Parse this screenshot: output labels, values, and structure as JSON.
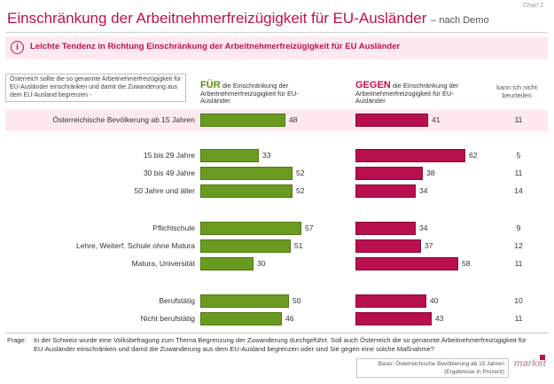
{
  "chart_tag": "Chart 2",
  "title": "Einschränkung der Arbeitnehmerfreizügigkeit für EU-Ausländer",
  "title_suffix": "– nach Demo",
  "headline": "Leichte Tendenz in Richtung Einschränkung der Arbeitnehmerfreizügigkeit für EU Ausländer",
  "question_box": "Österreich sollte die so genannte Arbeitnehmerfreizügigkeit für EU-Ausländer einschränken und damit die Zuwanderung aus dem EU-Ausland begrenzen -",
  "for_header": {
    "bold": "FÜR",
    "rest": "die Einschränkung der Arbeitnehmerfreizügigkeit für EU-Ausländer"
  },
  "against_header": {
    "bold": "GEGEN",
    "rest": "die Einschränkung der Arbeitnehmerfreizügigkeit für EU-Ausländer"
  },
  "nb_header": "kann ich nicht beurteilen",
  "frage_label": "Frage:",
  "frage_text": "In der Schweiz wurde eine Volksbefragung zum Thema Begrenzung der Zuwanderung durchgeführt. Soll auch Österreich die so genannte Arbeitnehmerfreizügigkeit für EU-Ausländer einschränken und damit die Zuwanderung aus dem EU-Ausland begrenzen oder sind Sie gegen eine solche Maßnahme?",
  "basis": "Basis: Österreichische Bevölkerung ab 15 Jahren",
  "basis_unit": "(Ergebnisse in Prozent)",
  "logo_text": "market",
  "colors": {
    "for": "#6a9a1f",
    "against": "#b80f4f",
    "accent": "#c0104f",
    "highlight": "#ffe9f1"
  },
  "chart_data": {
    "type": "bar",
    "title": "Einschränkung der Arbeitnehmerfreizügigkeit für EU-Ausländer",
    "categories": [
      "Österreichische Bevölkerung ab 15 Jahren",
      "15 bis 29 Jahre",
      "30 bis 49 Jahre",
      "50 Jahre und älter",
      "Pflichtschule",
      "Lehre, Weiterf. Schule ohne Matura",
      "Matura, Universität",
      "Berufstätig",
      "Nicht berufstätig"
    ],
    "series": [
      {
        "name": "FÜR",
        "values": [
          48,
          33,
          52,
          52,
          57,
          51,
          30,
          50,
          46
        ]
      },
      {
        "name": "GEGEN",
        "values": [
          41,
          62,
          38,
          34,
          34,
          37,
          58,
          40,
          43
        ]
      },
      {
        "name": "kann ich nicht beurteilen",
        "values": [
          11,
          5,
          11,
          14,
          9,
          12,
          11,
          10,
          11
        ]
      }
    ],
    "xlim": [
      0,
      100
    ]
  }
}
